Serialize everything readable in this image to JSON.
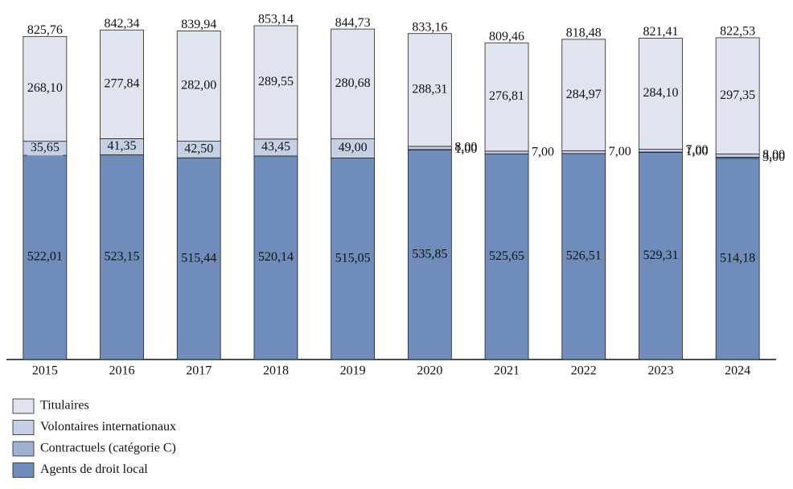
{
  "chart_data": {
    "type": "stacked-bar",
    "categories": [
      "2015",
      "2016",
      "2017",
      "2018",
      "2019",
      "2020",
      "2021",
      "2022",
      "2023",
      "2024"
    ],
    "series": [
      {
        "name": "Agents de droit local",
        "color": "#6f8cba",
        "values": [
          522.01,
          523.15,
          515.44,
          520.14,
          515.05,
          535.85,
          525.65,
          526.51,
          529.31,
          514.18
        ],
        "value_labels": [
          "522,01",
          "523,15",
          "515,44",
          "520,14",
          "515,05",
          "535,85",
          "525,65",
          "526,51",
          "529,31",
          "514,18"
        ]
      },
      {
        "name": "Contractuels (catégorie C)",
        "color": "#9fb1d2",
        "values": [
          null,
          null,
          null,
          null,
          null,
          1,
          null,
          null,
          1,
          3
        ],
        "value_labels": [
          null,
          null,
          null,
          null,
          null,
          "1,00",
          null,
          null,
          "1,00",
          "3,00"
        ]
      },
      {
        "name": "Volontaires internationaux",
        "color": "#c6d0e4",
        "values": [
          35.65,
          41.35,
          42.5,
          43.45,
          49,
          8,
          7,
          7,
          7,
          8
        ],
        "value_labels": [
          "35,65",
          "41,35",
          "42,50",
          "43,45",
          "49,00",
          "8,00",
          "7,00",
          "7,00",
          "7,00",
          "8,00"
        ]
      },
      {
        "name": "Titulaires",
        "color": "#dfe4ef",
        "values": [
          268.1,
          277.84,
          282,
          289.55,
          280.68,
          288.31,
          276.81,
          284.97,
          284.1,
          297.35
        ],
        "value_labels": [
          "268,10",
          "277,84",
          "282,00",
          "289,55",
          "280,68",
          "288,31",
          "276,81",
          "284,97",
          "284,10",
          "297,35"
        ]
      }
    ],
    "totals": {
      "values": [
        825.76,
        842.34,
        839.94,
        853.14,
        844.73,
        833.16,
        809.46,
        818.48,
        821.41,
        822.53
      ],
      "value_labels": [
        "825,76",
        "842,34",
        "839,94",
        "853,14",
        "844,73",
        "833,16",
        "809,46",
        "818,48",
        "821,41",
        "822,53"
      ]
    }
  }
}
